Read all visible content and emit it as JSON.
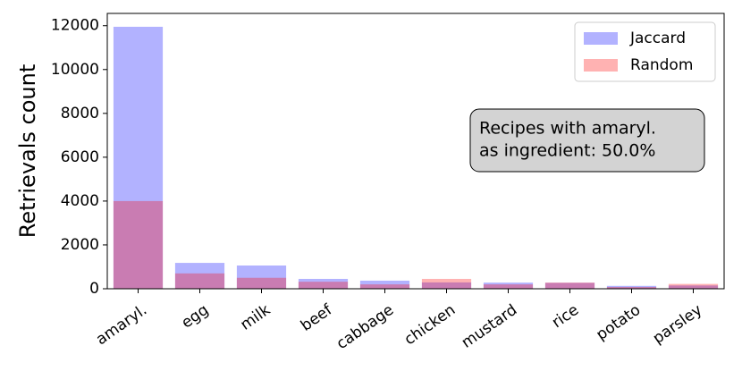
{
  "chart_data": {
    "type": "bar",
    "ylabel": "Retrievals count",
    "categories": [
      "amaryl.",
      "egg",
      "milk",
      "beef",
      "cabbage",
      "chicken",
      "mustard",
      "rice",
      "potato",
      "parsley"
    ],
    "series": [
      {
        "name": "Jaccard",
        "color": "#0000ff",
        "values": [
          11950,
          1180,
          1060,
          450,
          370,
          290,
          280,
          270,
          130,
          150
        ]
      },
      {
        "name": "Random",
        "color": "#ff0000",
        "values": [
          4000,
          700,
          500,
          320,
          200,
          450,
          200,
          280,
          80,
          220
        ]
      }
    ],
    "ylim": [
      0,
      12560
    ],
    "yticks": [
      0,
      2000,
      4000,
      6000,
      8000,
      10000,
      12000
    ],
    "legend": "upper right",
    "annotation": [
      "Recipes with amaryl.",
      "as ingredient: 50.0%"
    ]
  }
}
